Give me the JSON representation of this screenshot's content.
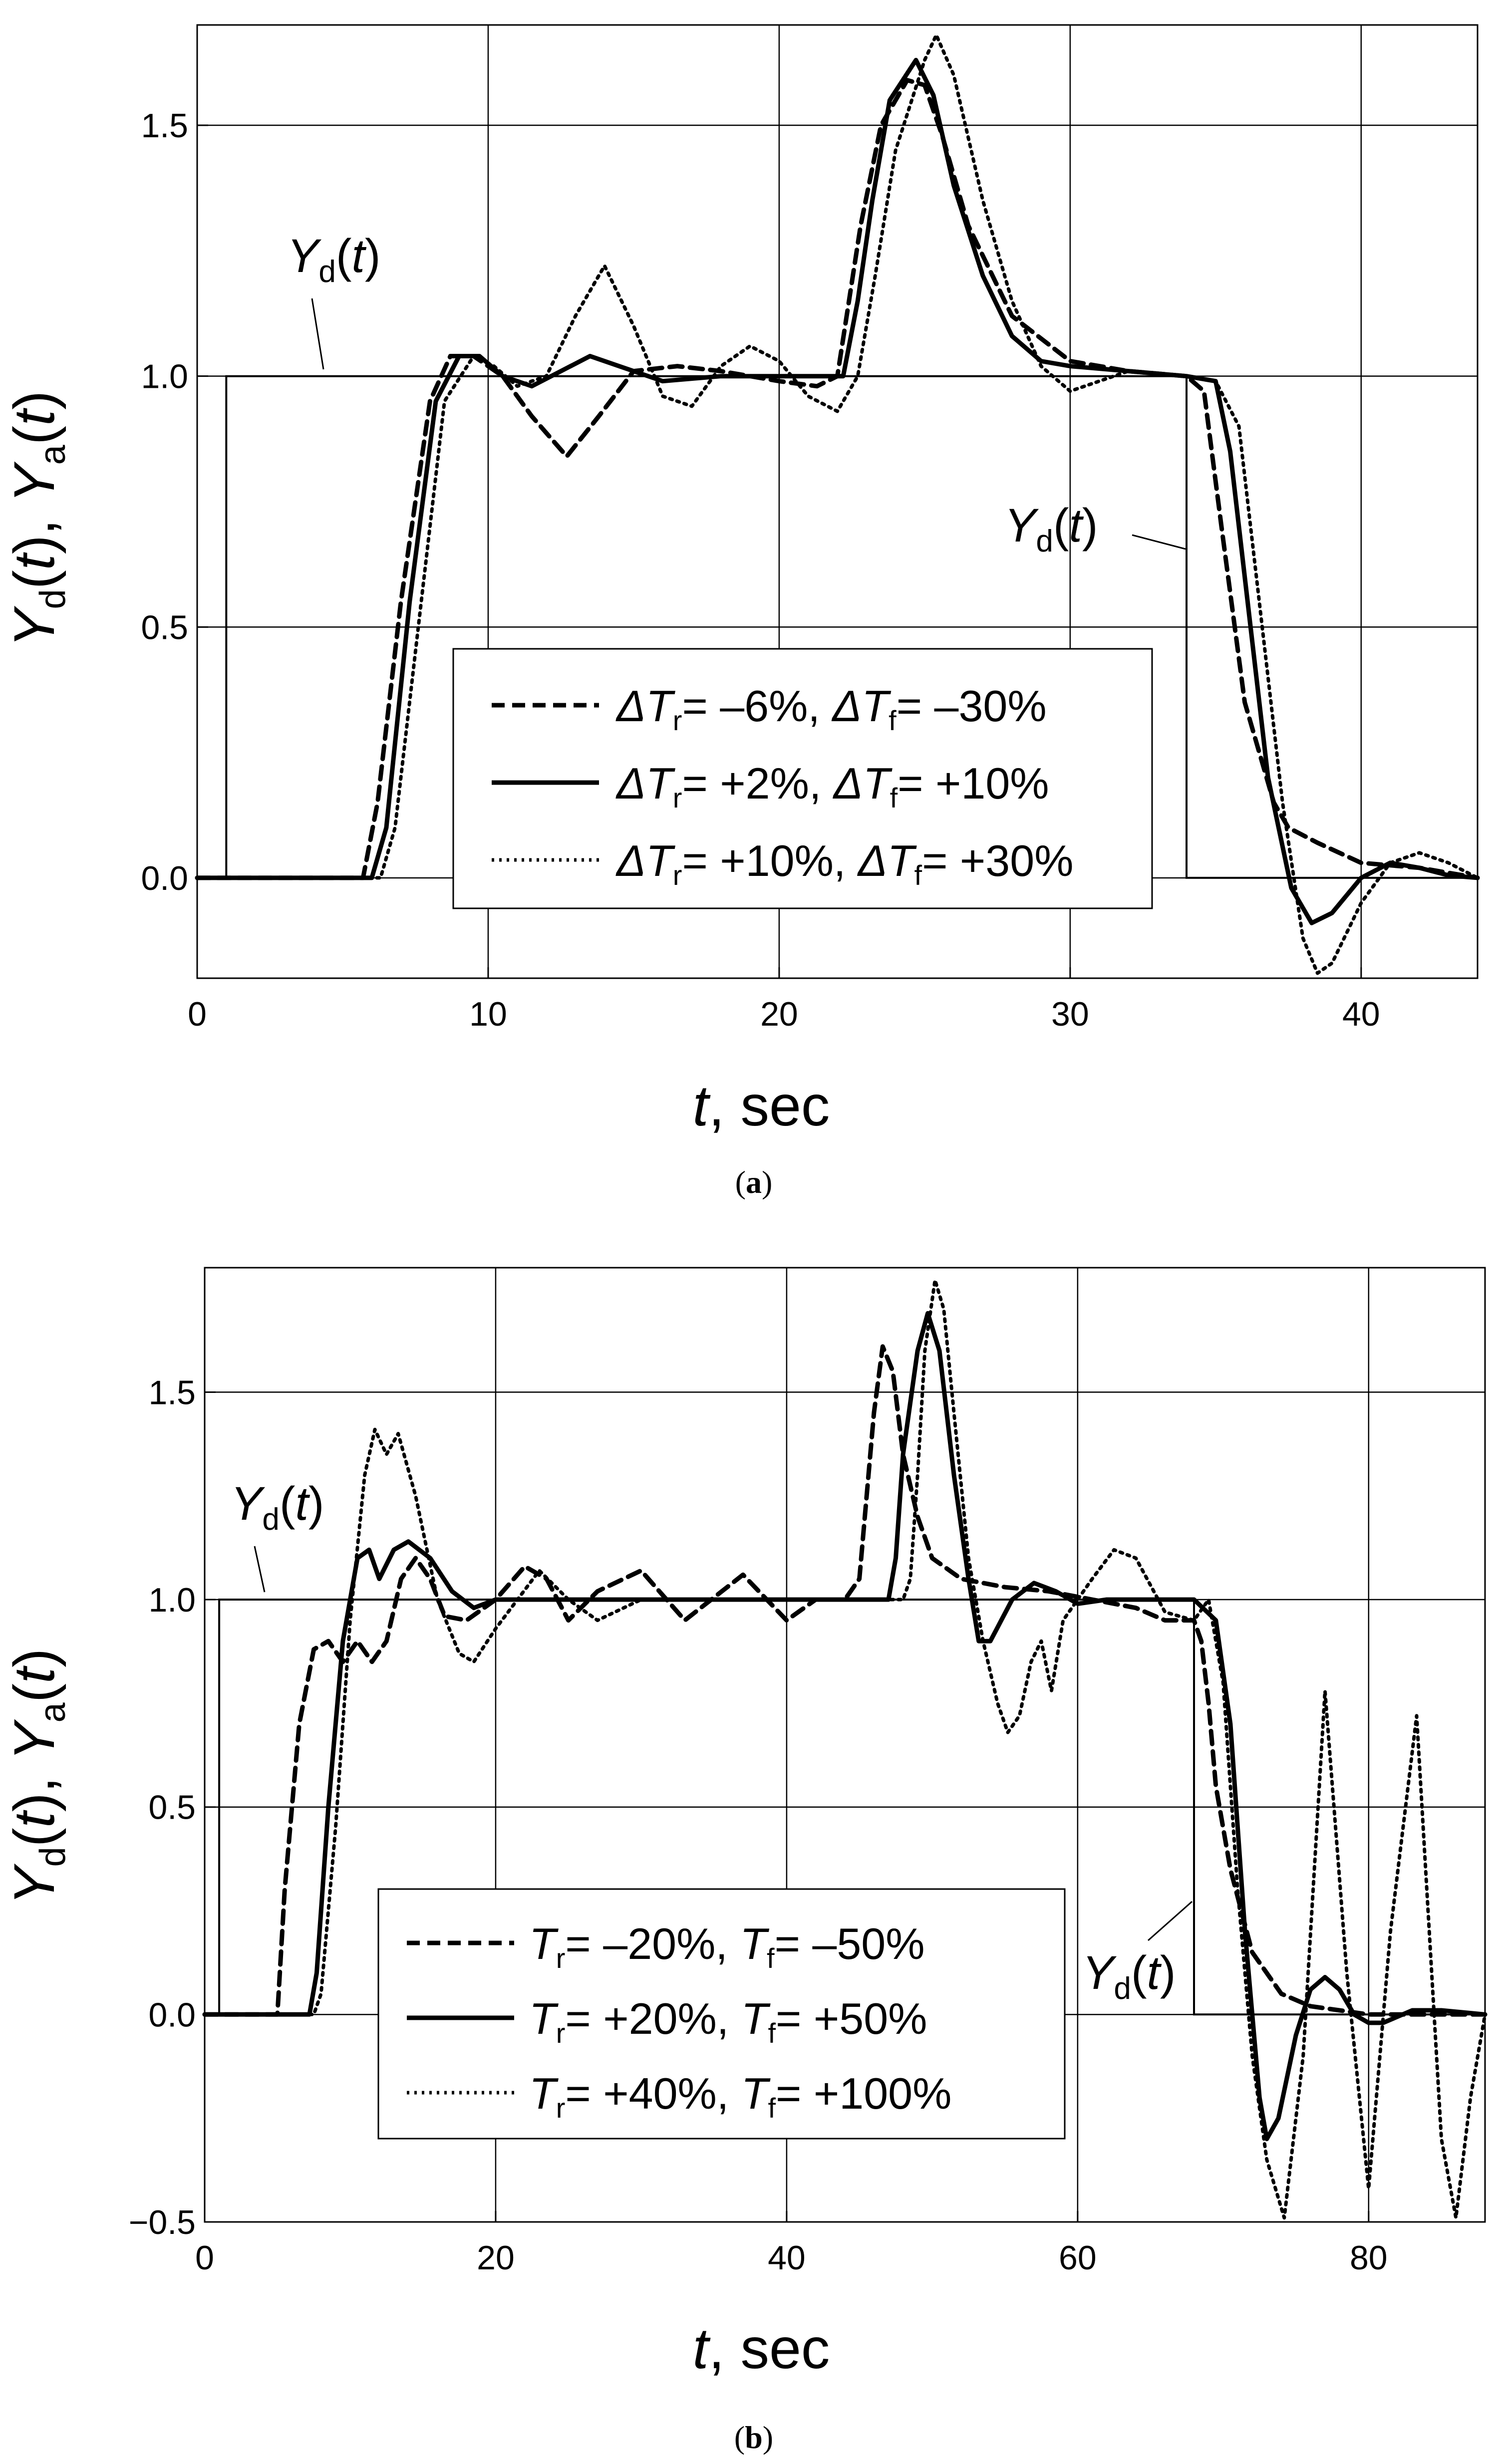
{
  "chart_data": [
    {
      "type": "line",
      "panel_label": "a",
      "xlabel": "t, sec",
      "ylabel": "Yd(t), Ya(t)",
      "xlim": [
        0,
        44
      ],
      "ylim": [
        -0.2,
        1.7
      ],
      "xticks": [
        0,
        10,
        20,
        30,
        40
      ],
      "yticks": [
        0.0,
        0.5,
        1.0,
        1.5
      ],
      "xtick_labels": [
        "0",
        "10",
        "20",
        "30",
        "40"
      ],
      "ytick_labels": [
        "0.0",
        "0.5",
        "1.0",
        "1.5"
      ],
      "grid": true,
      "legend_position": "lower-center",
      "annotations": [
        {
          "base": "Y",
          "sub": "d",
          "arg": "(t)",
          "points_to": "step at t=1 (value 1.0)"
        },
        {
          "base": "Y",
          "sub": "d",
          "arg": "(t)",
          "points_to": "step-down at t=34"
        }
      ],
      "reference": {
        "name": "Yd(t)",
        "x": [
          0,
          1,
          1,
          34,
          34,
          44
        ],
        "y": [
          0,
          0,
          1,
          1,
          0,
          0
        ]
      },
      "series": [
        {
          "name": "dashed",
          "style": "dashed",
          "legend": {
            "prefix": "ΔT",
            "sub1": "r",
            "val1": "= –6%, ",
            "prefix2": "ΔT",
            "sub2": "f",
            "val2": "= –30%"
          },
          "x": [
            0,
            5.7,
            6.2,
            7.0,
            8.0,
            8.7,
            9.5,
            10.5,
            11.5,
            12.7,
            13.8,
            15.0,
            16.5,
            18.0,
            20.0,
            21.3,
            22.0,
            22.4,
            22.8,
            23.5,
            24.4,
            25.0,
            25.6,
            26.5,
            28.0,
            30.0,
            32.0,
            34.0,
            34.6,
            35.2,
            36.0,
            37.0,
            37.5,
            38.5,
            40.0,
            42.0,
            44.0
          ],
          "y": [
            0,
            0,
            0.15,
            0.55,
            0.95,
            1.04,
            1.04,
            1.0,
            0.92,
            0.84,
            0.92,
            1.01,
            1.02,
            1.01,
            0.99,
            0.98,
            1.0,
            1.15,
            1.3,
            1.5,
            1.59,
            1.58,
            1.48,
            1.3,
            1.12,
            1.03,
            1.01,
            1.0,
            0.97,
            0.7,
            0.35,
            0.15,
            0.1,
            0.07,
            0.03,
            0.02,
            0.0
          ]
        },
        {
          "name": "solid",
          "style": "solid",
          "legend": {
            "prefix": "ΔT",
            "sub1": "r",
            "val1": "= +2%, ",
            "prefix2": "ΔT",
            "sub2": "f",
            "val2": "= +10%"
          },
          "x": [
            0,
            6.0,
            6.5,
            7.3,
            8.2,
            9.0,
            9.7,
            10.5,
            11.5,
            12.5,
            13.5,
            14.5,
            16.0,
            18.0,
            20.0,
            22.2,
            22.7,
            23.2,
            23.8,
            24.7,
            25.3,
            26.0,
            27.0,
            28.0,
            29.0,
            30.0,
            32.0,
            34.0,
            35.0,
            35.5,
            36.0,
            36.8,
            37.6,
            38.3,
            39.0,
            40.0,
            41.0,
            42.0,
            43.0,
            44.0
          ],
          "y": [
            0,
            0,
            0.1,
            0.55,
            0.95,
            1.04,
            1.04,
            1.0,
            0.98,
            1.01,
            1.04,
            1.02,
            0.99,
            1.0,
            1.0,
            1.0,
            1.15,
            1.35,
            1.55,
            1.63,
            1.56,
            1.38,
            1.2,
            1.08,
            1.03,
            1.02,
            1.01,
            1.0,
            0.99,
            0.85,
            0.6,
            0.2,
            -0.02,
            -0.09,
            -0.07,
            0.0,
            0.03,
            0.02,
            0.005,
            0.0
          ]
        },
        {
          "name": "dotted",
          "style": "dotted",
          "legend": {
            "prefix": "ΔT",
            "sub1": "r",
            "val1": "= +10%, ",
            "prefix2": "ΔT",
            "sub2": "f",
            "val2": "= +30%"
          },
          "x": [
            0,
            6.3,
            6.8,
            7.6,
            8.5,
            9.5,
            10.2,
            11.0,
            12.0,
            13.0,
            14.0,
            15.0,
            16.0,
            17.0,
            18.0,
            19.0,
            20.0,
            21.0,
            22.0,
            22.7,
            23.3,
            24.0,
            25.0,
            25.4,
            26.0,
            27.0,
            28.0,
            29.0,
            30.0,
            31.0,
            32.0,
            34.0,
            35.0,
            35.8,
            36.5,
            37.3,
            38.0,
            38.5,
            39.0,
            40.0,
            41.0,
            42.0,
            43.0,
            44.0
          ],
          "y": [
            0,
            0,
            0.1,
            0.5,
            0.95,
            1.04,
            1.02,
            0.98,
            1.0,
            1.12,
            1.22,
            1.1,
            0.96,
            0.94,
            1.02,
            1.06,
            1.03,
            0.96,
            0.93,
            1.0,
            1.2,
            1.45,
            1.63,
            1.68,
            1.6,
            1.35,
            1.15,
            1.02,
            0.97,
            0.99,
            1.01,
            1.0,
            0.99,
            0.9,
            0.55,
            0.15,
            -0.12,
            -0.19,
            -0.17,
            -0.05,
            0.03,
            0.05,
            0.03,
            0.0
          ]
        }
      ]
    },
    {
      "type": "line",
      "panel_label": "b",
      "xlabel": "t, sec",
      "ylabel": "Yd(t), Ya(t)",
      "xlim": [
        0,
        88
      ],
      "ylim": [
        -0.5,
        1.8
      ],
      "xticks": [
        0,
        20,
        40,
        60,
        80
      ],
      "yticks": [
        -0.5,
        0.0,
        0.5,
        1.0,
        1.5
      ],
      "xtick_labels": [
        "0",
        "20",
        "40",
        "60",
        "80"
      ],
      "ytick_labels": [
        "−0.5",
        "0.0",
        "0.5",
        "1.0",
        "1.5"
      ],
      "grid": true,
      "legend_position": "lower-center",
      "annotations": [
        {
          "base": "Y",
          "sub": "d",
          "arg": "(t)",
          "points_to": "step at t=1 (value 1.0)"
        },
        {
          "base": "Y",
          "sub": "d",
          "arg": "(t)",
          "points_to": "step-down at t=68"
        }
      ],
      "reference": {
        "name": "Yd(t)",
        "x": [
          0,
          1,
          1,
          68,
          68,
          88
        ],
        "y": [
          0,
          0,
          1,
          1,
          0,
          0
        ]
      },
      "series": [
        {
          "name": "dashed",
          "style": "dashed",
          "legend": {
            "prefix": "T",
            "sub1": "r",
            "val1": "= –20%, ",
            "prefix2": "T",
            "sub2": "f",
            "val2": "= –50%"
          },
          "x": [
            0,
            5.0,
            5.5,
            6.5,
            7.5,
            8.5,
            9.5,
            10.5,
            11.5,
            12.5,
            13.5,
            14.5,
            15.5,
            16.5,
            18.0,
            20.0,
            22.0,
            23.5,
            25.0,
            27.0,
            30.0,
            33.0,
            37.0,
            40.0,
            42.0,
            44.0,
            45.0,
            45.5,
            46.0,
            46.6,
            47.3,
            48.0,
            49.0,
            50.0,
            52.0,
            55.0,
            58.0,
            61.0,
            64.0,
            66.0,
            68.0,
            68.5,
            69.0,
            69.5,
            70.5,
            72.0,
            74.0,
            76.0,
            78.0,
            80.0,
            82.0,
            88.0
          ],
          "y": [
            0,
            0,
            0.3,
            0.7,
            0.88,
            0.9,
            0.85,
            0.9,
            0.85,
            0.9,
            1.05,
            1.1,
            1.05,
            0.96,
            0.95,
            1.0,
            1.08,
            1.05,
            0.95,
            1.02,
            1.07,
            0.95,
            1.06,
            0.95,
            1.0,
            1.0,
            1.05,
            1.25,
            1.45,
            1.61,
            1.55,
            1.35,
            1.2,
            1.1,
            1.05,
            1.03,
            1.02,
            1.0,
            0.98,
            0.95,
            0.95,
            0.9,
            0.75,
            0.55,
            0.35,
            0.15,
            0.05,
            0.02,
            0.01,
            0.0,
            0.0,
            0.0
          ]
        },
        {
          "name": "solid",
          "style": "solid",
          "legend": {
            "prefix": "T",
            "sub1": "r",
            "val1": "= +20%, ",
            "prefix2": "T",
            "sub2": "f",
            "val2": "= +50%"
          },
          "x": [
            0,
            7.2,
            7.7,
            8.5,
            9.5,
            10.5,
            11.3,
            12.0,
            13.0,
            14.0,
            15.5,
            17.0,
            18.5,
            20.0,
            25.0,
            30.0,
            40.0,
            45.0,
            47.0,
            47.5,
            48.0,
            49.0,
            49.7,
            50.5,
            51.5,
            52.5,
            53.2,
            54.0,
            55.5,
            57.0,
            58.5,
            60.0,
            62.0,
            65.0,
            68.0,
            69.5,
            70.5,
            71.5,
            72.5,
            73.0,
            73.8,
            75.0,
            76.0,
            77.0,
            78.0,
            79.0,
            80.0,
            81.0,
            83.0,
            85.0,
            88.0
          ],
          "y": [
            0,
            0,
            0.1,
            0.5,
            0.9,
            1.1,
            1.12,
            1.05,
            1.12,
            1.14,
            1.1,
            1.02,
            0.98,
            1.0,
            1.0,
            1.0,
            1.0,
            1.0,
            1.0,
            1.1,
            1.35,
            1.6,
            1.69,
            1.6,
            1.3,
            1.05,
            0.9,
            0.9,
            1.0,
            1.04,
            1.02,
            0.99,
            1.0,
            1.0,
            1.0,
            0.95,
            0.7,
            0.2,
            -0.2,
            -0.3,
            -0.25,
            -0.05,
            0.06,
            0.09,
            0.06,
            0.0,
            -0.02,
            -0.02,
            0.01,
            0.01,
            0.0
          ]
        },
        {
          "name": "dotted",
          "style": "dotted",
          "legend": {
            "prefix": "T",
            "sub1": "r",
            "val1": "= +40%, ",
            "prefix2": "T",
            "sub2": "f",
            "val2": "= +100%"
          },
          "x": [
            0,
            7.5,
            8.0,
            9.0,
            10.0,
            11.0,
            11.7,
            12.5,
            13.3,
            14.5,
            16.0,
            17.5,
            18.5,
            20.0,
            21.5,
            23.0,
            25.0,
            27.0,
            30.0,
            32.0,
            34.0,
            36.0,
            38.0,
            40.0,
            42.0,
            45.0,
            48.0,
            48.5,
            49.0,
            49.5,
            50.2,
            50.8,
            51.5,
            52.5,
            53.5,
            54.5,
            55.2,
            56.0,
            56.8,
            57.5,
            58.2,
            59.0,
            60.0,
            61.0,
            62.5,
            64.0,
            66.0,
            68.0,
            69.0,
            70.0,
            71.0,
            72.0,
            73.0,
            74.2,
            75.5,
            77.0,
            78.5,
            80.0,
            81.5,
            83.3,
            85.0,
            86.0,
            87.0,
            88.0
          ],
          "y": [
            0,
            0,
            0.05,
            0.45,
            0.95,
            1.3,
            1.41,
            1.35,
            1.4,
            1.25,
            1.0,
            0.87,
            0.85,
            0.93,
            1.0,
            1.07,
            1.0,
            0.95,
            1.0,
            1.0,
            1.0,
            1.0,
            1.0,
            1.0,
            1.0,
            1.0,
            1.0,
            1.05,
            1.3,
            1.6,
            1.77,
            1.7,
            1.45,
            1.1,
            0.9,
            0.75,
            0.68,
            0.72,
            0.85,
            0.9,
            0.78,
            0.95,
            1.0,
            1.05,
            1.12,
            1.1,
            0.97,
            0.95,
            1.0,
            0.8,
            0.3,
            -0.1,
            -0.35,
            -0.49,
            -0.1,
            0.78,
            0.1,
            -0.42,
            0.2,
            0.72,
            -0.3,
            -0.49,
            -0.2,
            0.0
          ]
        }
      ]
    }
  ]
}
